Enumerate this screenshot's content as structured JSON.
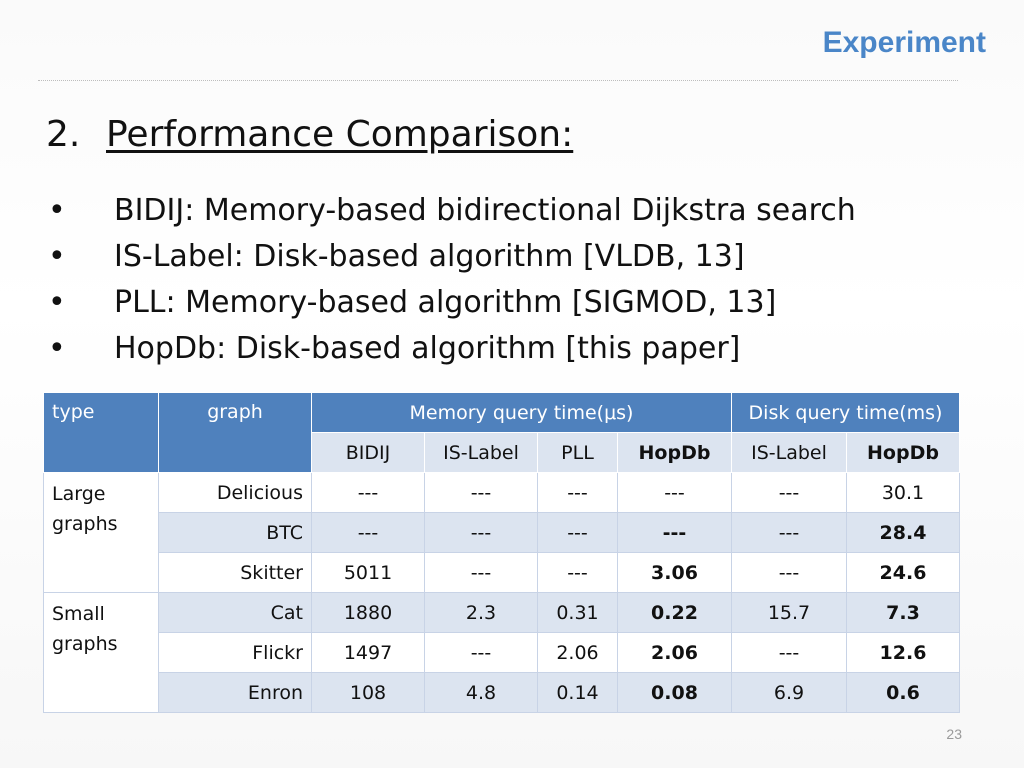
{
  "header": {
    "section": "Experiment"
  },
  "heading": {
    "number": "2.",
    "text": "Performance Comparison:"
  },
  "bullets": [
    "BIDIJ: Memory-based bidirectional Dijkstra search",
    "IS-Label: Disk-based algorithm [VLDB, 13]",
    "PLL: Memory-based algorithm [SIGMOD, 13]",
    "HopDb: Disk-based algorithm [this paper]"
  ],
  "bullet_symbol": "•",
  "table": {
    "headers": {
      "type": "type",
      "graph": "graph",
      "memory": "Memory query time(μs)",
      "disk": "Disk query time(ms)"
    },
    "subheaders": [
      "BIDIJ",
      "IS-Label",
      "PLL",
      "HopDb",
      "IS-Label",
      "HopDb"
    ],
    "groups": [
      {
        "type": "Large graphs",
        "rows": [
          {
            "graph": "Delicious",
            "values": [
              "---",
              "---",
              "---",
              "---",
              "---",
              "30.1"
            ]
          },
          {
            "graph": "BTC",
            "values": [
              "---",
              "---",
              "---",
              "---",
              "---",
              "28.4"
            ]
          },
          {
            "graph": "Skitter",
            "values": [
              "5011",
              "---",
              "---",
              "3.06",
              "---",
              "24.6"
            ]
          }
        ]
      },
      {
        "type": "Small graphs",
        "rows": [
          {
            "graph": "Cat",
            "values": [
              "1880",
              "2.3",
              "0.31",
              "0.22",
              "15.7",
              "7.3"
            ]
          },
          {
            "graph": "Flickr",
            "values": [
              "1497",
              "---",
              "2.06",
              "2.06",
              "---",
              "12.6"
            ]
          },
          {
            "graph": "Enron",
            "values": [
              "108",
              "4.8",
              "0.14",
              "0.08",
              "6.9",
              "0.6"
            ]
          }
        ]
      }
    ]
  },
  "footer": {
    "page_number": "23"
  },
  "colors": {
    "accent": "#4a86c8",
    "table_header": "#4f81bd",
    "table_band": "#dce4f0"
  }
}
